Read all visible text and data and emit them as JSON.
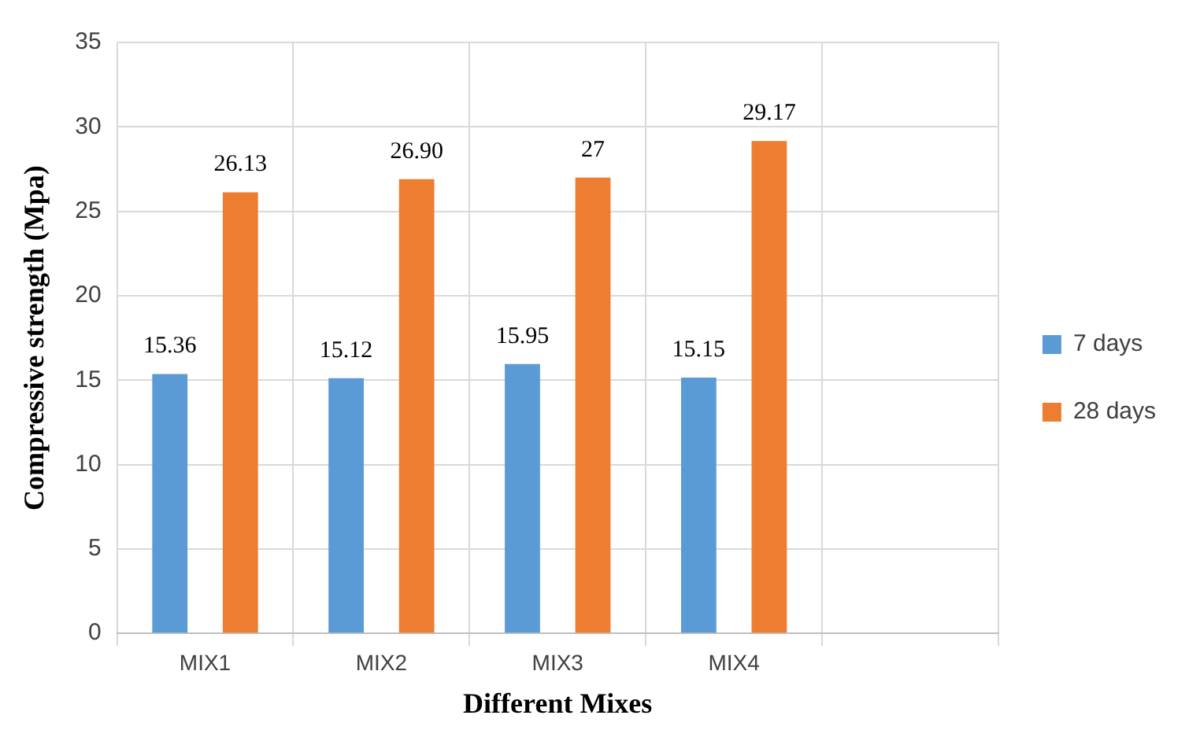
{
  "chart_data": {
    "type": "bar",
    "xlabel": "Different Mixes",
    "ylabel": "Compressive strength (Mpa)",
    "categories": [
      "MIX1",
      "MIX2",
      "MIX3",
      "MIX4",
      null
    ],
    "series": [
      {
        "name": "7 days",
        "color": "#5b9bd5",
        "values": [
          15.36,
          15.12,
          15.95,
          15.15,
          null
        ],
        "value_labels": [
          "15.36",
          "15.12",
          "15.95",
          "15.15",
          null
        ]
      },
      {
        "name": "28 days",
        "color": "#ed7d31",
        "values": [
          26.13,
          26.9,
          27,
          29.17,
          null
        ],
        "value_labels": [
          "26.13",
          "26.90",
          "27",
          "29.17",
          null
        ]
      }
    ],
    "ylim": [
      0,
      35
    ],
    "yticks": [
      0,
      5,
      10,
      15,
      20,
      25,
      30,
      35
    ],
    "grid": true,
    "legend": "right"
  }
}
